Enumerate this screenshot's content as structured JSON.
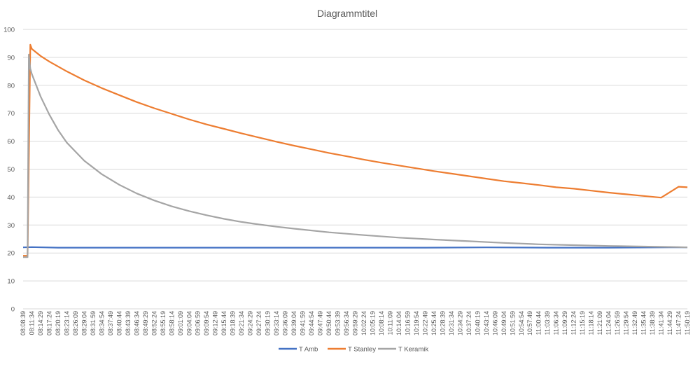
{
  "chart_data": {
    "type": "line",
    "title": "Diagrammtitel",
    "xlabel": "",
    "ylabel": "",
    "ylim": [
      0,
      100
    ],
    "yticks": [
      0,
      10,
      20,
      30,
      40,
      50,
      60,
      70,
      80,
      90,
      100
    ],
    "grid": "horizontal",
    "legend_position": "bottom",
    "x_tick_labels": [
      "08:08:39",
      "08:11:34",
      "08:14:29",
      "08:17:24",
      "08:20:19",
      "08:23:14",
      "08:26:09",
      "08:29:04",
      "08:31:59",
      "08:34:54",
      "08:37:49",
      "08:40:44",
      "08:43:39",
      "08:46:34",
      "08:49:29",
      "08:52:24",
      "08:55:19",
      "08:58:14",
      "09:01:09",
      "09:04:04",
      "09:06:59",
      "09:09:54",
      "09:12:49",
      "09:15:44",
      "09:18:39",
      "09:21:34",
      "09:24:29",
      "09:27:24",
      "09:30:19",
      "09:33:14",
      "09:36:09",
      "09:39:04",
      "09:41:59",
      "09:44:54",
      "09:47:49",
      "09:50:44",
      "09:53:39",
      "09:56:34",
      "09:59:29",
      "10:02:24",
      "10:05:19",
      "10:08:14",
      "10:11:09",
      "10:14:04",
      "10:16:59",
      "10:19:54",
      "10:22:49",
      "10:25:44",
      "10:28:39",
      "10:31:34",
      "10:34:29",
      "10:37:24",
      "10:40:19",
      "10:43:14",
      "10:46:09",
      "10:49:04",
      "10:51:59",
      "10:54:54",
      "10:57:49",
      "11:00:44",
      "11:03:39",
      "11:06:34",
      "11:09:29",
      "11:12:24",
      "11:15:19",
      "11:18:14",
      "11:21:09",
      "11:24:04",
      "11:26:59",
      "11:29:54",
      "11:32:49",
      "11:35:44",
      "11:38:39",
      "11:41:34",
      "11:44:29",
      "11:47:24",
      "11:50:19"
    ],
    "series": [
      {
        "name": "T Amb",
        "color": "#4472C4",
        "x": [
          "08:08:39",
          "08:11:34",
          "08:20:19",
          "08:40:44",
          "09:01:09",
          "09:21:34",
          "09:41:59",
          "10:02:24",
          "10:22:49",
          "10:43:14",
          "11:03:39",
          "11:24:04",
          "11:44:29",
          "11:50:19"
        ],
        "values": [
          22.0,
          22.1,
          21.9,
          21.9,
          21.9,
          21.9,
          21.9,
          21.9,
          21.9,
          22.0,
          21.9,
          21.9,
          22.0,
          22.0
        ]
      },
      {
        "name": "T Stanley",
        "color": "#ED7D31",
        "x": [
          "08:08:39",
          "08:10:09",
          "08:11:04",
          "08:11:34",
          "08:14:29",
          "08:17:24",
          "08:23:14",
          "08:29:04",
          "08:34:54",
          "08:40:44",
          "08:46:34",
          "08:52:24",
          "08:58:14",
          "09:04:04",
          "09:09:54",
          "09:15:44",
          "09:21:34",
          "09:27:24",
          "09:33:14",
          "09:39:04",
          "09:44:54",
          "09:50:44",
          "09:56:34",
          "10:02:24",
          "10:08:14",
          "10:14:04",
          "10:19:54",
          "10:25:44",
          "10:31:34",
          "10:37:24",
          "10:43:14",
          "10:49:04",
          "10:54:54",
          "11:00:44",
          "11:06:34",
          "11:12:24",
          "11:18:14",
          "11:24:04",
          "11:29:54",
          "11:35:44",
          "11:41:34",
          "11:47:24",
          "11:50:19"
        ],
        "values": [
          19.0,
          19.0,
          94.5,
          93.0,
          90.5,
          88.5,
          85.0,
          81.8,
          79.0,
          76.5,
          74.0,
          71.8,
          69.8,
          67.8,
          66.0,
          64.4,
          62.8,
          61.3,
          59.8,
          58.4,
          57.1,
          55.8,
          54.6,
          53.4,
          52.3,
          51.3,
          50.3,
          49.3,
          48.4,
          47.5,
          46.6,
          45.7,
          45.0,
          44.3,
          43.5,
          43.0,
          42.3,
          41.6,
          41.0,
          40.4,
          39.8,
          43.7,
          43.5
        ]
      },
      {
        "name": "T Keramik",
        "color": "#A5A5A5",
        "x": [
          "08:08:39",
          "08:10:09",
          "08:10:34",
          "08:11:04",
          "08:11:34",
          "08:14:29",
          "08:17:24",
          "08:20:19",
          "08:23:14",
          "08:29:04",
          "08:34:54",
          "08:40:44",
          "08:46:34",
          "08:52:24",
          "08:58:14",
          "09:04:04",
          "09:09:54",
          "09:15:44",
          "09:21:34",
          "09:27:24",
          "09:33:14",
          "09:39:04",
          "09:50:44",
          "10:02:24",
          "10:14:04",
          "10:25:44",
          "10:37:24",
          "10:49:04",
          "11:00:44",
          "11:12:24",
          "11:24:04",
          "11:35:44",
          "11:47:24",
          "11:50:19"
        ],
        "values": [
          18.5,
          18.5,
          91.0,
          86.0,
          84.0,
          76.0,
          69.5,
          64.0,
          59.5,
          53.0,
          48.2,
          44.4,
          41.3,
          38.8,
          36.7,
          35.0,
          33.5,
          32.2,
          31.1,
          30.2,
          29.4,
          28.7,
          27.4,
          26.4,
          25.5,
          24.8,
          24.2,
          23.6,
          23.1,
          22.8,
          22.5,
          22.3,
          22.1,
          22.0
        ]
      }
    ]
  }
}
